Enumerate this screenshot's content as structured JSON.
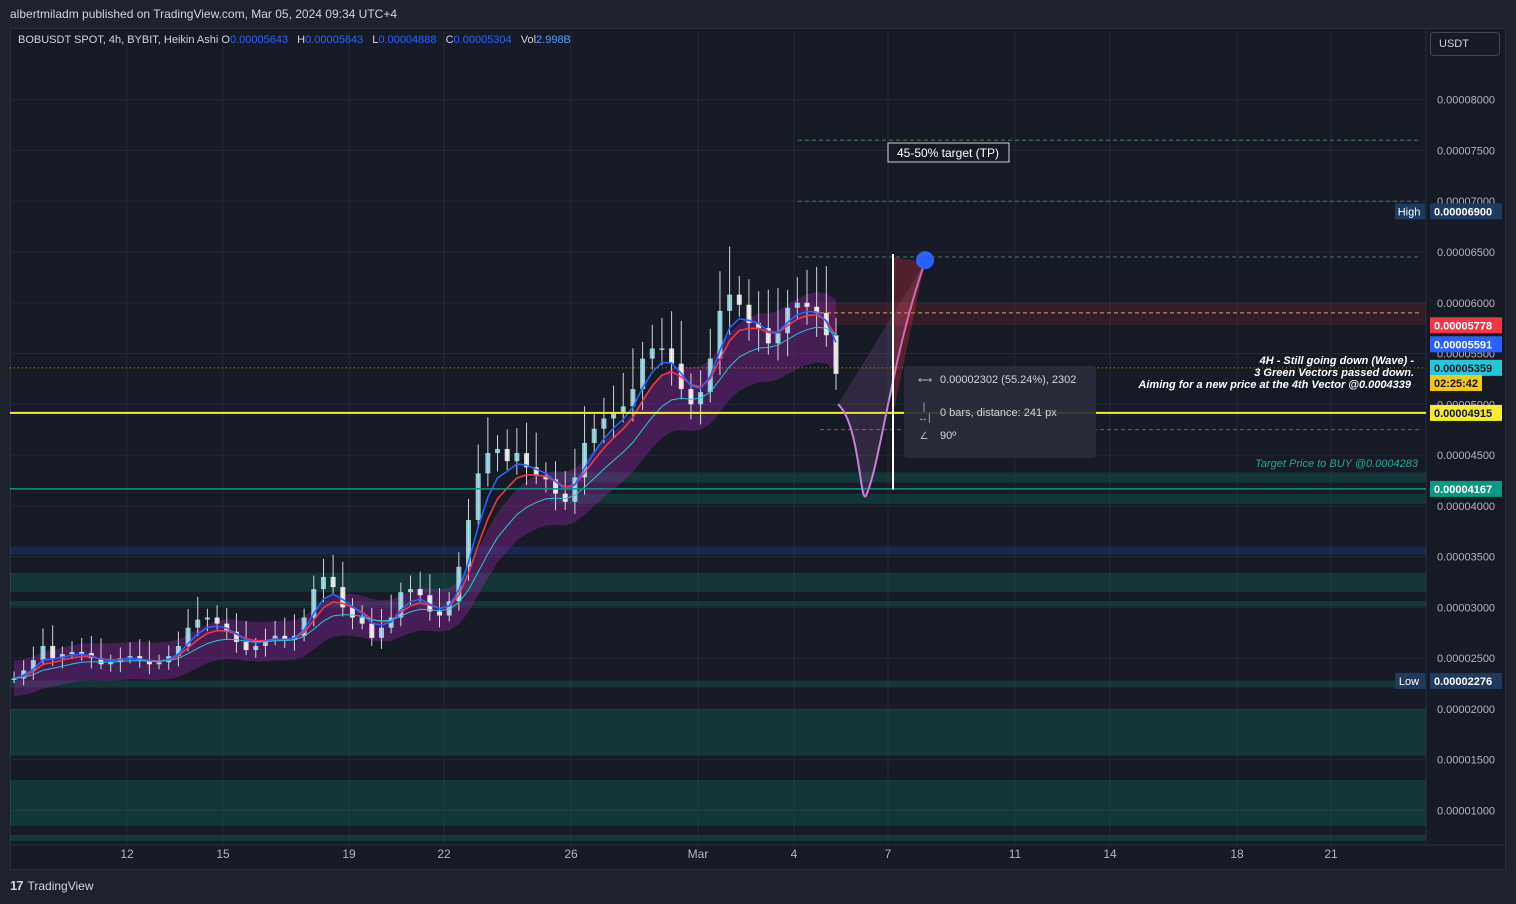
{
  "header": {
    "published": "albertmiladm published on TradingView.com, Mar 05, 2024 09:34 UTC+4"
  },
  "legend": {
    "symbol": "BOBUSDT SPOT, 4h, BYBIT, Heikin Ashi",
    "o_label": "O",
    "o_value": "0.00005643",
    "h_label": "H",
    "h_value": "0.00005643",
    "l_label": "L",
    "l_value": "0.00004888",
    "c_label": "C",
    "c_value": "0.00005304",
    "vol_label": "Vol",
    "vol_value": "2.998B"
  },
  "currency": "USDT",
  "footer": {
    "brand": "TradingView",
    "logo": "17"
  },
  "annotations": {
    "target_tp": "45-50% target (TP)",
    "note_line1": "4H - Still going down (Wave) -",
    "note_line2": "3 Green Vectors passed down.",
    "note_line3": "Aiming for a new price at the 4th Vector @0.0004339",
    "target_buy": "Target Price to BUY @0.0004283"
  },
  "measure": {
    "change": "0.00002302 (55.24%), 2302",
    "bars": "0 bars, distance: 241 px",
    "angle": "90º"
  },
  "price_tags": [
    {
      "label": "High",
      "value": "0.00006900",
      "y": 6.9e-05,
      "bg": "#1e3a5f",
      "fg": "#ffffff"
    },
    {
      "label": "",
      "value": "0.00005778",
      "y": 5.778e-05,
      "bg": "#f23645",
      "fg": "#ffffff"
    },
    {
      "label": "",
      "value": "0.00005591",
      "y": 5.591e-05,
      "bg": "#2962ff",
      "fg": "#ffffff"
    },
    {
      "label": "",
      "value": "0.00005359",
      "y": 5.359e-05,
      "bg": "#26c6da",
      "fg": "#131722"
    },
    {
      "label": "",
      "value": "02:25:42",
      "y": 5.21e-05,
      "bg": "#f5c518",
      "fg": "#131722"
    },
    {
      "label": "",
      "value": "0.00004915",
      "y": 4.915e-05,
      "bg": "#f5ee30",
      "fg": "#131722"
    },
    {
      "label": "",
      "value": "0.00004167",
      "y": 4.167e-05,
      "bg": "#089981",
      "fg": "#ffffff"
    },
    {
      "label": "Low",
      "value": "0.00002276",
      "y": 2.276e-05,
      "bg": "#1e3a5f",
      "fg": "#ffffff"
    }
  ],
  "colors": {
    "bg": "#161a25",
    "grid": "#242833",
    "text": "#b2b5be",
    "candle_up": "#a7e5f2",
    "candle_down": "#ffffff",
    "ema_red": "#f23645",
    "ema_blue": "#2962ff",
    "band": "#9c27b0",
    "yellow": "#f5ee30",
    "teal": "#089981",
    "purple_path": "#c77ed8"
  },
  "chart_data": {
    "type": "line",
    "title": "BOBUSDT SPOT, 4h, BYBIT, Heikin Ashi",
    "xlabel": "",
    "ylabel": "",
    "x_ticks": [
      "12",
      "15",
      "19",
      "22",
      "26",
      "Mar",
      "4",
      "7",
      "11",
      "14",
      "18",
      "21"
    ],
    "y_ticks": [
      "0.00008000",
      "0.00007500",
      "0.00007000",
      "0.00006500",
      "0.00006000",
      "0.00005500",
      "0.00005000",
      "0.00004500",
      "0.00004000",
      "0.00003500",
      "0.00003000",
      "0.00002500",
      "0.00002000",
      "0.00001500",
      "0.00001000"
    ],
    "ylim": [
      6.6e-06,
      8.43e-05
    ],
    "grid": true,
    "series": [
      {
        "values": [
          2.3e-05,
          2.38e-05,
          2.48e-05,
          2.62e-05,
          2.5e-05,
          2.54e-05,
          2.56e-05,
          2.55e-05,
          2.5e-05,
          2.44e-05,
          2.46e-05,
          2.5e-05,
          2.52e-05,
          2.48e-05,
          2.44e-05,
          2.46e-05,
          2.52e-05,
          2.62e-05,
          2.8e-05,
          2.88e-05,
          2.9e-05,
          2.84e-05,
          2.76e-05,
          2.66e-05,
          2.58e-05,
          2.62e-05,
          2.68e-05,
          2.72e-05,
          2.68e-05,
          2.72e-05,
          2.9e-05,
          3.18e-05,
          3.3e-05,
          3.2e-05,
          3e-05,
          2.9e-05,
          2.84e-05,
          2.7e-05,
          2.8e-05,
          2.9e-05,
          3.15e-05,
          3.18e-05,
          3.12e-05,
          2.96e-05,
          2.92e-05,
          3.06e-05,
          3.4e-05,
          3.86e-05,
          4.32e-05,
          4.52e-05,
          4.56e-05,
          4.44e-05,
          4.52e-05,
          4.38e-05,
          4.3e-05,
          4.26e-05,
          4.12e-05,
          4.04e-05,
          4.28e-05,
          4.62e-05,
          4.76e-05,
          4.86e-05,
          4.92e-05,
          4.98e-05,
          5.15e-05,
          5.45e-05,
          5.55e-05,
          5.55e-05,
          5.4e-05,
          5.15e-05,
          5e-05,
          5.12e-05,
          5.45e-05,
          5.92e-05,
          6.08e-05,
          5.98e-05,
          5.8e-05,
          5.75e-05,
          5.6e-05,
          5.7e-05,
          5.95e-05,
          6e-05,
          5.96e-05,
          5.9e-05,
          5.68e-05,
          5.3e-05
        ]
      }
    ],
    "horizontal_levels": [
      {
        "y": 4.915e-05,
        "color": "#f5ee30"
      },
      {
        "y": 4.167e-05,
        "color": "#089981"
      }
    ],
    "zones": [
      {
        "from": 4.23e-05,
        "to": 4.33e-05
      },
      {
        "from": 4.02e-05,
        "to": 4.12e-05
      },
      {
        "from": 3.52e-05,
        "to": 3.6e-05
      },
      {
        "from": 3.15e-05,
        "to": 3.34e-05
      },
      {
        "from": 3.01e-05,
        "to": 3.06e-05
      },
      {
        "from": 2.21e-05,
        "to": 2.28e-05
      },
      {
        "from": 1.54e-05,
        "to": 2e-05
      },
      {
        "from": 8.5e-06,
        "to": 1.3e-05
      },
      {
        "from": 7e-06,
        "to": 7.6e-06
      }
    ]
  }
}
